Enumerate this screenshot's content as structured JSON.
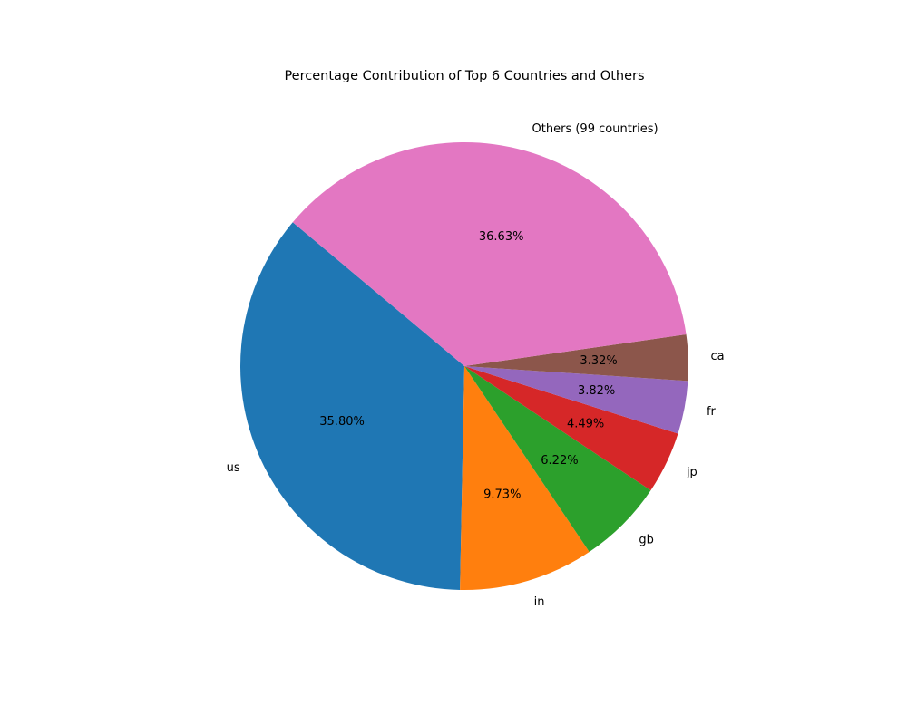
{
  "chart_data": {
    "type": "pie",
    "title": "Percentage Contribution of Top 6 Countries and Others",
    "slices": [
      {
        "label": "us",
        "value": 35.8,
        "pct_text": "35.80%",
        "color": "#1f77b4"
      },
      {
        "label": "in",
        "value": 9.73,
        "pct_text": "9.73%",
        "color": "#ff7f0e"
      },
      {
        "label": "gb",
        "value": 6.22,
        "pct_text": "6.22%",
        "color": "#2ca02c"
      },
      {
        "label": "jp",
        "value": 4.49,
        "pct_text": "4.49%",
        "color": "#d62728"
      },
      {
        "label": "fr",
        "value": 3.82,
        "pct_text": "3.82%",
        "color": "#9467bd"
      },
      {
        "label": "ca",
        "value": 3.32,
        "pct_text": "3.32%",
        "color": "#8c564b"
      },
      {
        "label": "Others (99 countries)",
        "value": 36.63,
        "pct_text": "36.63%",
        "color": "#e377c2"
      }
    ],
    "start_angle_deg": 140,
    "direction": "counterclockwise",
    "legend": "none"
  }
}
